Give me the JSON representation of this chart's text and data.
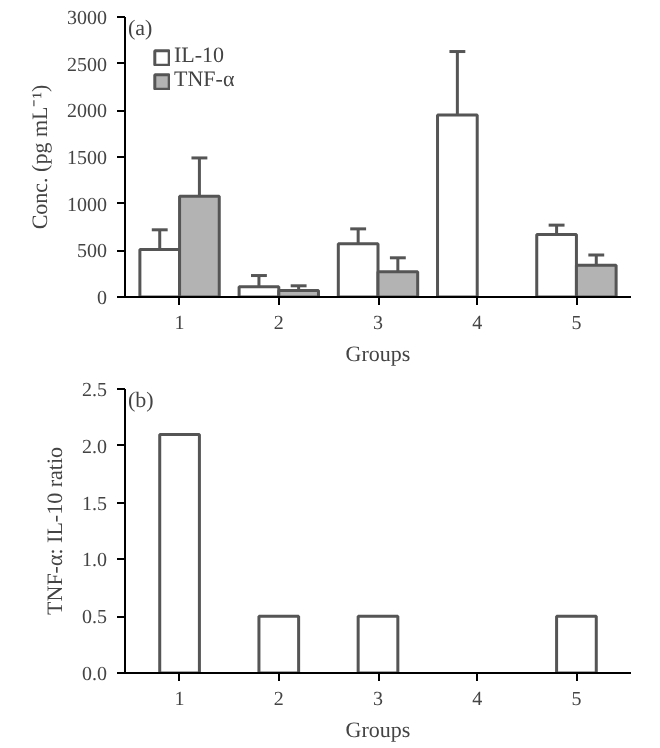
{
  "chart_data": [
    {
      "type": "bar",
      "title": "(a)",
      "xlabel": "Groups",
      "ylabel": "Conc. (pg mL⁻¹)",
      "categories": [
        "1",
        "2",
        "3",
        "4",
        "5"
      ],
      "series": [
        {
          "name": "IL-10",
          "color": "#ffffff",
          "values": [
            510,
            110,
            570,
            1950,
            670
          ],
          "errors": [
            [
              510,
              720
            ],
            [
              110,
              230
            ],
            [
              570,
              730
            ],
            [
              1950,
              2630
            ],
            [
              670,
              770
            ]
          ]
        },
        {
          "name": "TNF-α",
          "color": "#b3b3b3",
          "values": [
            1080,
            70,
            270,
            null,
            340
          ],
          "errors": [
            [
              1080,
              1490
            ],
            [
              70,
              120
            ],
            [
              270,
              420
            ],
            null,
            [
              340,
              450
            ]
          ]
        }
      ],
      "ylim": [
        0,
        3000
      ],
      "yticks": [
        0,
        500,
        1000,
        1500,
        2000,
        2500,
        3000
      ],
      "grid": false,
      "legend": "top left"
    },
    {
      "type": "bar",
      "title": "(b)",
      "xlabel": "Groups",
      "ylabel": "TNF-α: IL-10 ratio",
      "categories": [
        "1",
        "2",
        "3",
        "4",
        "5"
      ],
      "series": [
        {
          "color": "#ffffff",
          "values": [
            2.1,
            0.5,
            0.5,
            null,
            0.5
          ]
        }
      ],
      "ylim": [
        0,
        2.5
      ],
      "yticks": [
        {
          "value": 0,
          "label": "0.0"
        },
        {
          "value": 0.5,
          "label": "0.5"
        },
        {
          "value": 1,
          "label": "1.0"
        },
        {
          "value": 1.5,
          "label": "1.5"
        },
        {
          "value": 2,
          "label": "2.0"
        },
        {
          "value": 2.5,
          "label": "2.5"
        }
      ],
      "grid": false
    }
  ]
}
